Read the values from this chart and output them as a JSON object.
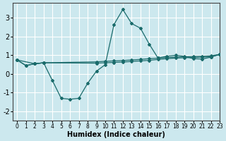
{
  "xlabel": "Humidex (Indice chaleur)",
  "bg_color": "#cce8ee",
  "grid_color": "#ffffff",
  "line_color": "#1a6b6b",
  "xlim": [
    -0.5,
    23
  ],
  "ylim": [
    -2.5,
    3.8
  ],
  "yticks": [
    -2,
    -1,
    0,
    1,
    2,
    3
  ],
  "xticks": [
    0,
    1,
    2,
    3,
    4,
    5,
    6,
    7,
    8,
    9,
    10,
    11,
    12,
    13,
    14,
    15,
    16,
    17,
    18,
    19,
    20,
    21,
    22,
    23
  ],
  "line1_x": [
    0,
    1,
    2,
    3,
    4,
    5,
    6,
    7,
    8,
    9,
    10,
    11,
    12,
    13,
    14,
    15,
    16,
    17,
    18,
    19,
    20,
    21,
    22,
    23
  ],
  "line1_y": [
    0.75,
    0.45,
    0.55,
    0.6,
    -0.35,
    -1.3,
    -1.35,
    -1.3,
    -0.5,
    0.15,
    0.5,
    2.65,
    3.45,
    2.7,
    2.45,
    1.6,
    0.85,
    0.95,
    1.0,
    0.95,
    0.82,
    0.8,
    0.9,
    1.05
  ],
  "line2_x": [
    0,
    2,
    3,
    9,
    10,
    11,
    12,
    13,
    14,
    15,
    16,
    17,
    18,
    19,
    20,
    21,
    22,
    23
  ],
  "line2_y": [
    0.75,
    0.55,
    0.6,
    0.65,
    0.68,
    0.7,
    0.72,
    0.75,
    0.78,
    0.82,
    0.85,
    0.88,
    0.9,
    0.92,
    0.94,
    0.95,
    0.97,
    1.05
  ],
  "line3_x": [
    0,
    1,
    2,
    3,
    9,
    10,
    11,
    12,
    13,
    14,
    15,
    16,
    17,
    18,
    19,
    20,
    21,
    22,
    23
  ],
  "line3_y": [
    0.75,
    0.45,
    0.55,
    0.6,
    0.58,
    0.6,
    0.62,
    0.64,
    0.67,
    0.7,
    0.73,
    0.78,
    0.82,
    0.85,
    0.87,
    0.88,
    0.9,
    0.92,
    1.05
  ]
}
